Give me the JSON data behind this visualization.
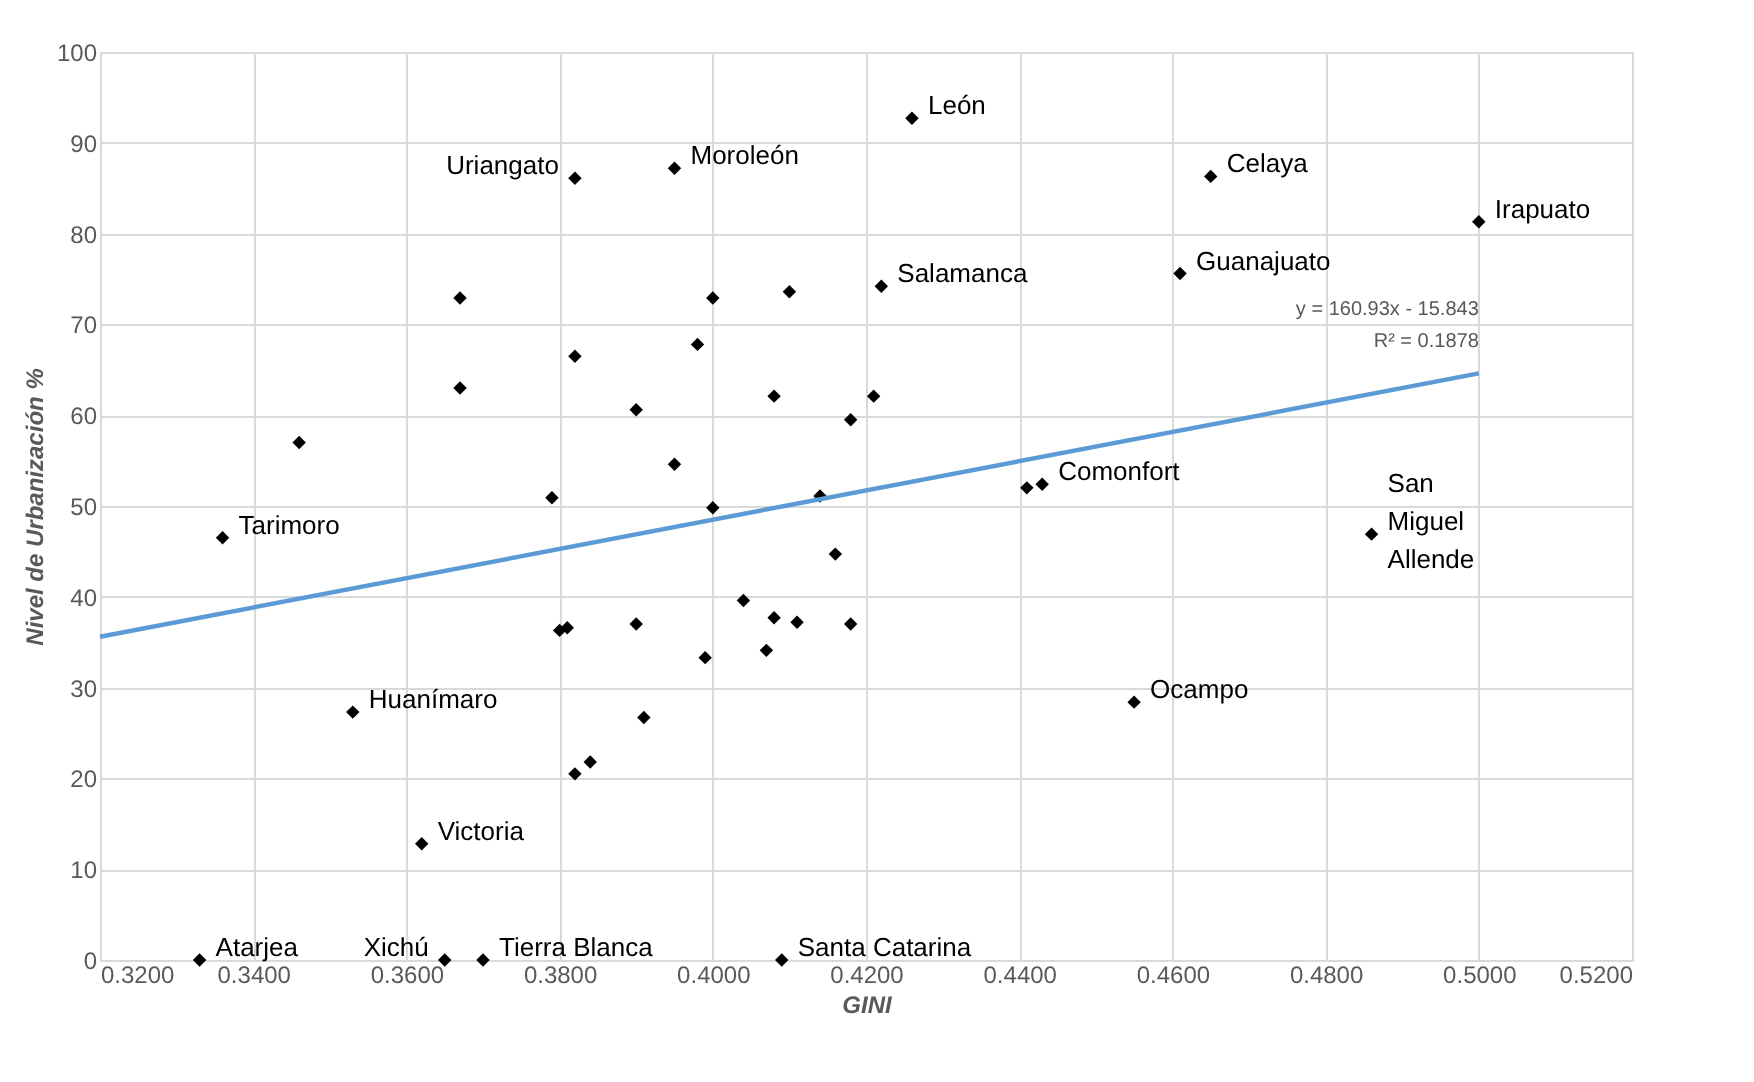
{
  "chart_data": {
    "type": "scatter",
    "xlabel": "GINI",
    "ylabel": "Nivel de Urbanización %",
    "xlim": [
      0.32,
      0.52
    ],
    "ylim": [
      0,
      100
    ],
    "xticks": [
      {
        "value": 0.32,
        "label": "0.3200"
      },
      {
        "value": 0.34,
        "label": "0.3400"
      },
      {
        "value": 0.36,
        "label": "0.3600"
      },
      {
        "value": 0.38,
        "label": "0.3800"
      },
      {
        "value": 0.4,
        "label": "0.4000"
      },
      {
        "value": 0.42,
        "label": "0.4200"
      },
      {
        "value": 0.44,
        "label": "0.4400"
      },
      {
        "value": 0.46,
        "label": "0.4600"
      },
      {
        "value": 0.48,
        "label": "0.4800"
      },
      {
        "value": 0.5,
        "label": "0.5000"
      },
      {
        "value": 0.52,
        "label": "0.5200"
      }
    ],
    "yticks": [
      0,
      10,
      20,
      30,
      40,
      50,
      60,
      70,
      80,
      90,
      100
    ],
    "grid": true,
    "series": [
      {
        "color": "#000000",
        "marker": "diamond",
        "x": [
          0.333,
          0.365,
          0.37,
          0.409,
          0.362,
          0.353,
          0.336,
          0.346,
          0.367,
          0.367,
          0.382,
          0.395,
          0.426,
          0.465,
          0.5,
          0.422,
          0.461,
          0.4,
          0.41,
          0.382,
          0.398,
          0.39,
          0.395,
          0.379,
          0.4,
          0.408,
          0.421,
          0.418,
          0.414,
          0.441,
          0.443,
          0.486,
          0.455,
          0.38,
          0.381,
          0.39,
          0.391,
          0.382,
          0.384,
          0.399,
          0.404,
          0.407,
          0.408,
          0.411,
          0.416,
          0.418
        ],
        "values": [
          0,
          0,
          0,
          0,
          12.8,
          27.3,
          46.5,
          57.0,
          72.9,
          63.0,
          86.1,
          87.2,
          92.7,
          86.3,
          81.3,
          74.2,
          75.6,
          72.9,
          73.6,
          66.5,
          67.8,
          60.6,
          54.6,
          50.9,
          49.8,
          62.1,
          62.1,
          59.5,
          51.1,
          52.0,
          52.4,
          46.9,
          28.4,
          36.3,
          36.6,
          37.0,
          26.7,
          20.5,
          21.8,
          33.3,
          39.6,
          34.1,
          37.7,
          37.2,
          44.7,
          37.0
        ]
      },
      {
        "type": "line",
        "color": "#5b9bd5",
        "x": [
          0.32,
          0.5
        ],
        "values": [
          35.6,
          64.6
        ]
      }
    ],
    "annotations": [
      {
        "text": "Atarjea",
        "x": 0.333,
        "y": 0
      },
      {
        "text": "Xichú",
        "x": 0.365,
        "y": 0
      },
      {
        "text": "Tierra Blanca",
        "x": 0.37,
        "y": 0
      },
      {
        "text": "Santa Catarina",
        "x": 0.409,
        "y": 0
      },
      {
        "text": "Victoria",
        "x": 0.362,
        "y": 12.8
      },
      {
        "text": "Huanímaro",
        "x": 0.353,
        "y": 27.3
      },
      {
        "text": "Tarimoro",
        "x": 0.336,
        "y": 46.5
      },
      {
        "text": "Uriangato",
        "x": 0.382,
        "y": 86.1
      },
      {
        "text": "Moroleón",
        "x": 0.395,
        "y": 87.2
      },
      {
        "text": "León",
        "x": 0.426,
        "y": 92.7
      },
      {
        "text": "Celaya",
        "x": 0.465,
        "y": 86.3
      },
      {
        "text": "Irapuato",
        "x": 0.5,
        "y": 81.3
      },
      {
        "text": "Salamanca",
        "x": 0.422,
        "y": 74.2
      },
      {
        "text": "Guanajuato",
        "x": 0.461,
        "y": 75.6
      },
      {
        "text": "Comonfort",
        "x": 0.443,
        "y": 52.4
      },
      {
        "text": "San\nMiguel\nAllende",
        "x": 0.486,
        "y": 46.9
      },
      {
        "text": "Ocampo",
        "x": 0.455,
        "y": 28.4
      },
      {
        "text": "y = 160.93x - 15.843\nR² = 0.1878",
        "x": 0.5,
        "y": 64.6
      }
    ]
  }
}
